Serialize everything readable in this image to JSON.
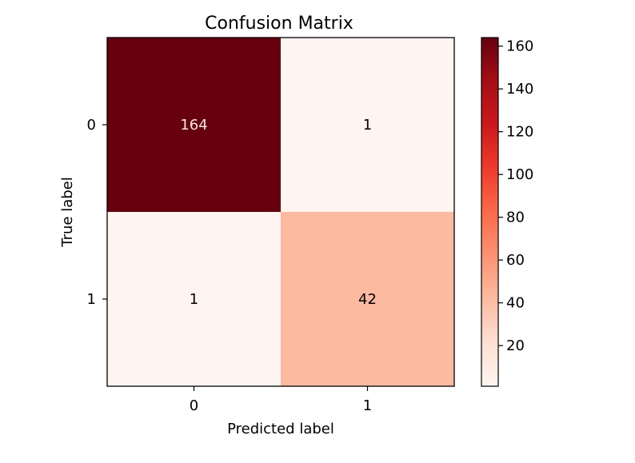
{
  "chart_data": {
    "type": "heatmap",
    "title": "Confusion Matrix",
    "xlabel": "Predicted label",
    "ylabel": "True label",
    "x_categories": [
      "0",
      "1"
    ],
    "y_categories": [
      "0",
      "1"
    ],
    "values": [
      [
        164,
        1
      ],
      [
        1,
        42
      ]
    ],
    "colormap": "Reds",
    "colorbar": {
      "ticks": [
        20,
        40,
        60,
        80,
        100,
        120,
        140,
        160
      ],
      "range": [
        1,
        164
      ]
    },
    "colors": {
      "max": "#67000d",
      "min": "#fff5f0",
      "text_dark_cell": "#f5e6e4",
      "text_light_cell": "#000000"
    }
  }
}
